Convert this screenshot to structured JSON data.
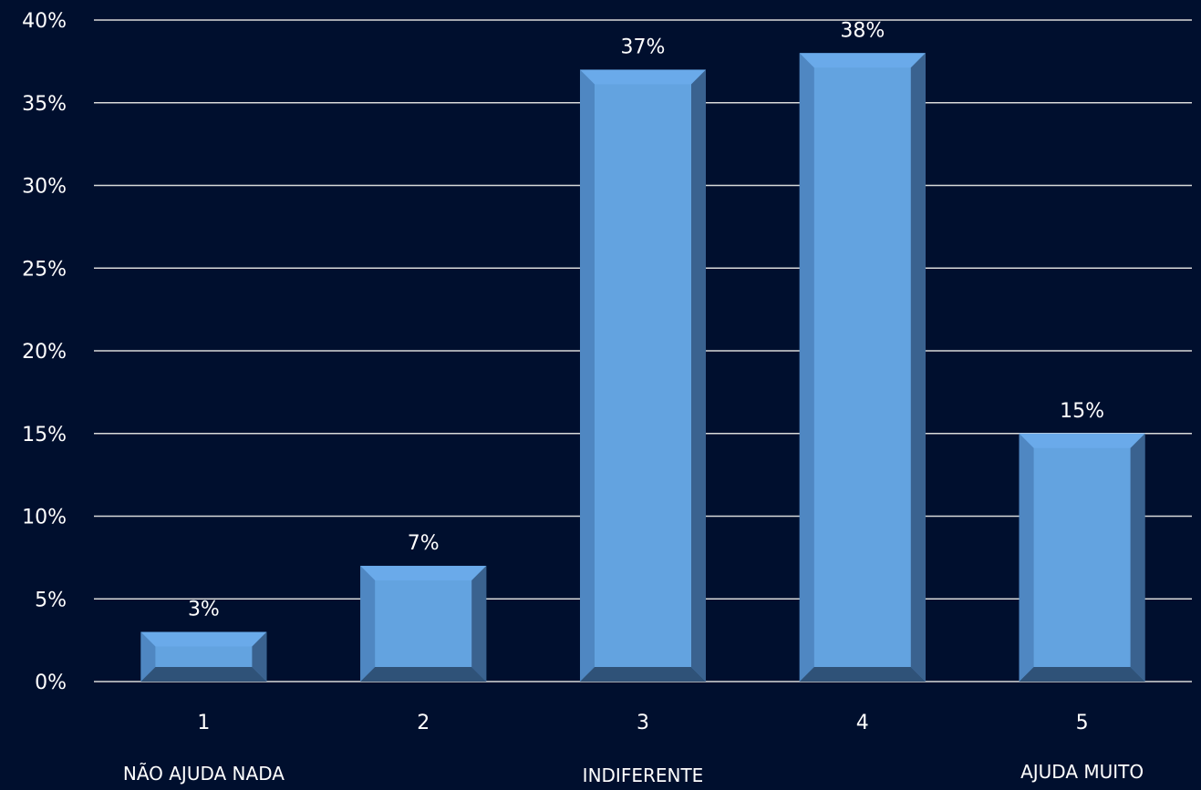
{
  "chart_data": {
    "type": "bar",
    "categories": [
      "1",
      "2",
      "3",
      "4",
      "5"
    ],
    "values": [
      3,
      7,
      37,
      38,
      15
    ],
    "value_labels": [
      "3%",
      "7%",
      "37%",
      "38%",
      "15%"
    ],
    "ylim": [
      0,
      40
    ],
    "yticks": [
      0,
      5,
      10,
      15,
      20,
      25,
      30,
      35,
      40
    ],
    "ytick_labels": [
      "0%",
      "5%",
      "10%",
      "15%",
      "20%",
      "25%",
      "30%",
      "35%",
      "40%"
    ],
    "scale_labels": [
      {
        "category": "1",
        "text": "NÃO AJUDA NADA"
      },
      {
        "category": "3",
        "text": "INDIFERENTE"
      },
      {
        "category": "5",
        "text": "AJUDA MUITO"
      }
    ],
    "grid": true,
    "legend": "none",
    "colors": {
      "background": "#000f2e",
      "bar_face": "#63a3e0",
      "bar_top": "#6aaaea",
      "bar_left": "#4f87c2",
      "bar_right": "#3a628f",
      "bar_bottom": "#2f5278",
      "grid": "#d9d9d9",
      "text": "#ffffff"
    }
  }
}
